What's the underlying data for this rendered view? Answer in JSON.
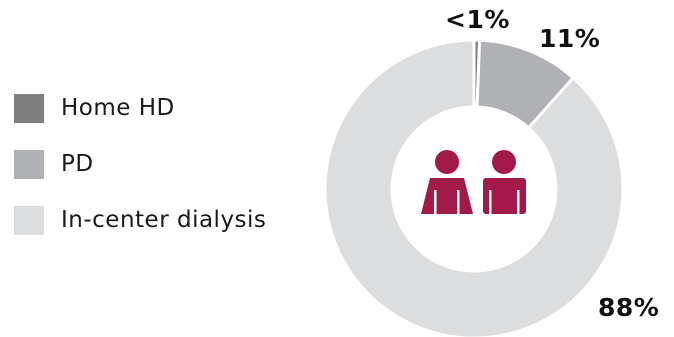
{
  "chart_data": {
    "type": "pie",
    "style": "donut",
    "categories": [
      "Home HD",
      "PD",
      "In-center dialysis"
    ],
    "values": [
      0.6,
      11,
      88.4
    ],
    "labels": [
      "<1%",
      "11%",
      "88%"
    ],
    "colors": [
      "#7f7f7f",
      "#afb1b4",
      "#dcddde"
    ],
    "legend_position": "left",
    "center_icon": "two-people-icon",
    "center_icon_color": "#a3194a"
  }
}
